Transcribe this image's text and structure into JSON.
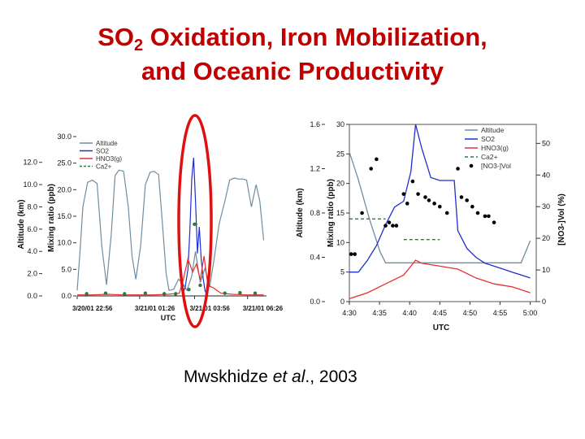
{
  "slide": {
    "title_line1_pre": "SO",
    "title_line1_sub": "2",
    "title_line1_post": " Oxidation, Iron Mobilization,",
    "title_line2": "and Oceanic Productivity",
    "citation_pre": "Mwskhidze ",
    "citation_em": "et al",
    "citation_post": "., 2003",
    "title_color": "#c00000",
    "highlight_color": "#e01010"
  },
  "chart_data": [
    {
      "type": "line",
      "xlabel": "UTC",
      "x_tick_labels": [
        "3/20/01 22:56",
        "3/21/01 01:26",
        "3/21/01 03:56",
        "3/21/01 06:26"
      ],
      "xlim": [
        0,
        10
      ],
      "left_axis": {
        "label": "Altitude (km)",
        "ylim": [
          0,
          13
        ],
        "ticks": [
          0.0,
          2.0,
          4.0,
          6.0,
          8.0,
          10.0,
          12.0
        ],
        "tick_labels": [
          "0.0",
          "2.0",
          "4.0",
          "6.0",
          "8.0",
          "10.0",
          "12.0"
        ]
      },
      "right_axis": {
        "label": "Mixing ratio (ppb)",
        "ylim": [
          0,
          30
        ],
        "ticks": [
          0,
          5,
          10,
          15,
          20,
          25,
          30
        ],
        "tick_labels": [
          "0.0",
          "5.0",
          "10.0",
          "15.0",
          "20.0",
          "25.0",
          "30.0"
        ]
      },
      "legend": [
        "Altitude",
        "SO2",
        "HNO3(g)",
        "Ca2+"
      ],
      "legend_position": "top-left",
      "series": [
        {
          "name": "Altitude",
          "color": "#6f8ea0",
          "axis": "left",
          "x": [
            0.0,
            0.15,
            0.3,
            0.55,
            0.8,
            1.05,
            1.3,
            1.55,
            1.8,
            2.0,
            2.2,
            2.45,
            2.7,
            2.9,
            3.1,
            3.35,
            3.6,
            3.85,
            4.05,
            4.3,
            4.5,
            4.7,
            4.85,
            5.1,
            5.35,
            5.55,
            5.8,
            6.05,
            6.25,
            6.5,
            6.75,
            7.0,
            7.25,
            7.5,
            7.8,
            8.05,
            8.3,
            8.5,
            8.75,
            8.95,
            9.2,
            9.45,
            9.65,
            9.85
          ],
          "y": [
            0.5,
            4.0,
            8.0,
            10.2,
            10.4,
            10.1,
            4.5,
            1.0,
            5.5,
            10.8,
            11.3,
            11.2,
            8.0,
            3.5,
            1.5,
            4.5,
            10.0,
            11.1,
            11.2,
            10.9,
            6.5,
            2.0,
            0.5,
            0.6,
            1.5,
            1.2,
            0.5,
            1.8,
            4.0,
            1.2,
            2.5,
            0.8,
            3.5,
            6.5,
            8.5,
            10.4,
            10.6,
            10.5,
            10.5,
            10.4,
            8.0,
            10.0,
            8.5,
            5.0
          ]
        },
        {
          "name": "SO2",
          "color": "#1f2fd0",
          "axis": "right",
          "x": [
            5.55,
            5.7,
            5.85,
            5.95,
            6.05,
            6.15,
            6.25,
            6.35,
            6.45,
            6.55,
            6.65,
            6.75,
            6.85
          ],
          "y": [
            0.3,
            1.5,
            5.0,
            12.0,
            22.0,
            26.0,
            18.0,
            8.0,
            13.0,
            7.0,
            3.5,
            1.0,
            0.2
          ]
        },
        {
          "name": "HNO3(g)",
          "color": "#e53030",
          "axis": "right",
          "x": [
            0.0,
            0.8,
            1.6,
            2.4,
            3.2,
            4.0,
            4.8,
            5.4,
            5.6,
            5.85,
            6.1,
            6.3,
            6.5,
            6.7,
            6.9,
            7.2,
            7.6,
            8.2,
            9.0,
            9.85
          ],
          "y": [
            0.2,
            0.2,
            0.3,
            0.2,
            0.2,
            0.2,
            0.3,
            0.5,
            3.0,
            7.0,
            4.5,
            6.0,
            3.0,
            7.5,
            2.0,
            1.5,
            0.5,
            0.3,
            0.2,
            0.2
          ]
        },
        {
          "name": "Ca2+",
          "color": "#2e7a3a",
          "axis": "right",
          "x": [
            0.5,
            1.5,
            2.5,
            3.6,
            4.6,
            5.2,
            5.9,
            6.2,
            6.5,
            7.8,
            8.6,
            9.4
          ],
          "y": [
            0.4,
            0.5,
            0.4,
            0.5,
            0.4,
            0.4,
            1.2,
            13.5,
            2.0,
            0.5,
            0.6,
            0.5
          ]
        }
      ],
      "annotation": "red ellipse highlighting the SO2 peak near 3/21/01 03:56"
    },
    {
      "type": "line",
      "xlabel": "UTC",
      "x_tick_labels": [
        "4:30",
        "4:35",
        "4:40",
        "4:45",
        "4:50",
        "4:55",
        "5:00"
      ],
      "xlim": [
        4.5,
        5.0167
      ],
      "left_axis": {
        "label": "Altitude (km)",
        "ylim": [
          0,
          1.6
        ],
        "ticks": [
          0.0,
          0.4,
          0.8,
          1.2,
          1.6
        ],
        "tick_labels": [
          "0.0",
          "0.4",
          "0.8",
          "1.2",
          "1.6"
        ]
      },
      "left_axis_2": {
        "label": "Mixing ratio (ppb)",
        "ylim": [
          0,
          30
        ],
        "ticks": [
          0,
          5,
          10,
          15,
          20,
          25,
          30
        ],
        "tick_labels": [
          "0",
          "5",
          "10",
          "15",
          "20",
          "25",
          "30"
        ]
      },
      "right_axis": {
        "label": "[NO3-]Vol (%)",
        "ylim": [
          0,
          56
        ],
        "ticks": [
          0,
          10,
          20,
          30,
          40,
          50
        ],
        "tick_labels": [
          "0",
          "10",
          "20",
          "30",
          "40",
          "50"
        ]
      },
      "legend": [
        "Altitude",
        "SO2",
        "HNO3(g)",
        "Ca2+",
        "[NO3-]Vol"
      ],
      "legend_position": "top-right",
      "series": [
        {
          "name": "Altitude",
          "color": "#6f8ea0",
          "axis": "left",
          "x": [
            4.5,
            4.525,
            4.555,
            4.585,
            4.6,
            4.7,
            4.8,
            4.9,
            4.975,
            5.0
          ],
          "y": [
            1.35,
            1.1,
            0.75,
            0.45,
            0.35,
            0.35,
            0.35,
            0.35,
            0.35,
            0.55
          ]
        },
        {
          "name": "SO2",
          "color": "#1f2fd0",
          "axis": "left_axis_2",
          "x": [
            4.5,
            4.525,
            4.55,
            4.575,
            4.6,
            4.625,
            4.65,
            4.67,
            4.683,
            4.7,
            4.725,
            4.75,
            4.77,
            4.79,
            4.8,
            4.825,
            4.85,
            4.875,
            4.9,
            4.925,
            4.95,
            4.975,
            5.0
          ],
          "y": [
            5.0,
            5.0,
            7.0,
            9.5,
            13.0,
            16.0,
            17.0,
            22.0,
            30.0,
            26.0,
            21.0,
            20.5,
            20.5,
            20.5,
            12.0,
            9.0,
            7.5,
            6.5,
            6.0,
            5.5,
            5.0,
            4.5,
            4.0
          ]
        },
        {
          "name": "HNO3(g)",
          "color": "#e53030",
          "axis": "left_axis_2",
          "x": [
            4.5,
            4.55,
            4.6,
            4.65,
            4.67,
            4.683,
            4.7,
            4.75,
            4.8,
            4.85,
            4.9,
            4.95,
            5.0
          ],
          "y": [
            0.5,
            1.5,
            3.0,
            4.5,
            6.0,
            7.0,
            6.5,
            6.0,
            5.5,
            4.0,
            3.0,
            2.5,
            1.5
          ]
        },
        {
          "name": "Ca2+",
          "color": "#2e7a3a",
          "axis": "left_axis_2",
          "style": "dashed",
          "x": [
            4.5,
            4.6
          ],
          "y": [
            14.0,
            14.0
          ],
          "x2": [
            4.65,
            4.75
          ],
          "y2": [
            10.5,
            10.5
          ]
        },
        {
          "name": "[NO3-]Vol",
          "color": "#000000",
          "axis": "right",
          "style": "markers",
          "x": [
            4.505,
            4.515,
            4.535,
            4.56,
            4.575,
            4.6,
            4.61,
            4.62,
            4.63,
            4.65,
            4.66,
            4.675,
            4.69,
            4.71,
            4.72,
            4.735,
            4.75,
            4.77,
            4.8,
            4.81,
            4.825,
            4.84,
            4.855,
            4.875,
            4.885,
            4.9
          ],
          "y": [
            15,
            15,
            28,
            42,
            45,
            24,
            25,
            24,
            24,
            34,
            31,
            38,
            34,
            33,
            32,
            31,
            30,
            28,
            42,
            33,
            32,
            30,
            28,
            27,
            27,
            25
          ]
        }
      ]
    }
  ]
}
